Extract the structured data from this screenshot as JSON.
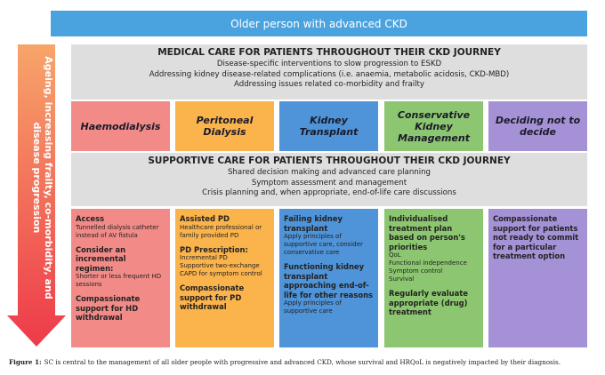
{
  "header": {
    "title": "Older person with advanced CKD"
  },
  "side_arrow": {
    "label": "Ageing, increasing frailty, co-morbidity, and disease progression"
  },
  "medical_care": {
    "title": "MEDICAL CARE FOR PATIENTS THROUGHOUT THEIR CKD JOURNEY",
    "lines": [
      "Disease-specific interventions to slow progression to ESKD",
      "Addressing kidney disease-related complications (i.e. anaemia, metabolic acidosis, CKD-MBD)",
      "Addressing issues related co-morbidity and frailty"
    ]
  },
  "options": [
    {
      "label": "Haemodialysis",
      "color": "#f28b88"
    },
    {
      "label": "Peritoneal Dialysis",
      "color": "#fbb34c"
    },
    {
      "label": "Kidney Transplant",
      "color": "#4f93d8"
    },
    {
      "label": "Conservative Kidney Management",
      "color": "#8dc670"
    },
    {
      "label": "Deciding not to decide",
      "color": "#a592d6"
    }
  ],
  "supportive_care": {
    "title": "SUPPORTIVE CARE FOR PATIENTS THROUGHOUT THEIR CKD JOURNEY",
    "lines": [
      "Shared decision making and advanced care planning",
      "Symptom assessment and management",
      "Crisis planning and, when appropriate, end-of-life care discussions"
    ]
  },
  "columns": [
    {
      "blocks": [
        {
          "heading": "Access",
          "lines": [
            "Tunnelled dialysis catheter instead of AV fistula"
          ]
        },
        {
          "heading": "Consider an incremental regimen:",
          "lines": [
            "Shorter or less frequent HD sessions"
          ]
        },
        {
          "heading": "Compassionate support for HD withdrawal",
          "lines": []
        }
      ]
    },
    {
      "blocks": [
        {
          "heading": "Assisted PD",
          "lines": [
            "Healthcare professional or family provided PD"
          ]
        },
        {
          "heading": "PD Prescription:",
          "lines": [
            "Incremental PD",
            "Supportive two-exchange CAPD for symptom control"
          ]
        },
        {
          "heading": "Compassionate support for PD withdrawal",
          "lines": []
        }
      ]
    },
    {
      "blocks": [
        {
          "heading": "Failing kidney transplant",
          "lines": [
            "Apply principles of supportive care, consider conservative care"
          ]
        },
        {
          "heading": "Functioning kidney transplant approaching end-of-life for other reasons",
          "lines": [
            "Apply principles of supportive care"
          ]
        }
      ]
    },
    {
      "blocks": [
        {
          "heading": "Individualised treatment plan based on person's priorities",
          "lines": [
            "QoL",
            "Functional independence",
            "Symptom control",
            "Survival"
          ]
        },
        {
          "heading": "Regularly evaluate appropriate (drug) treatment",
          "lines": []
        }
      ]
    },
    {
      "blocks": [
        {
          "heading": "Compassionate support for patients not ready to commit for a particular treatment option",
          "lines": []
        }
      ]
    }
  ],
  "caption": {
    "label": "Figure 1:",
    "text": "SC is central to the management of all older people with progressive and advanced CKD, whose survival and HRQoL is negatively impacted by their diagnosis."
  }
}
